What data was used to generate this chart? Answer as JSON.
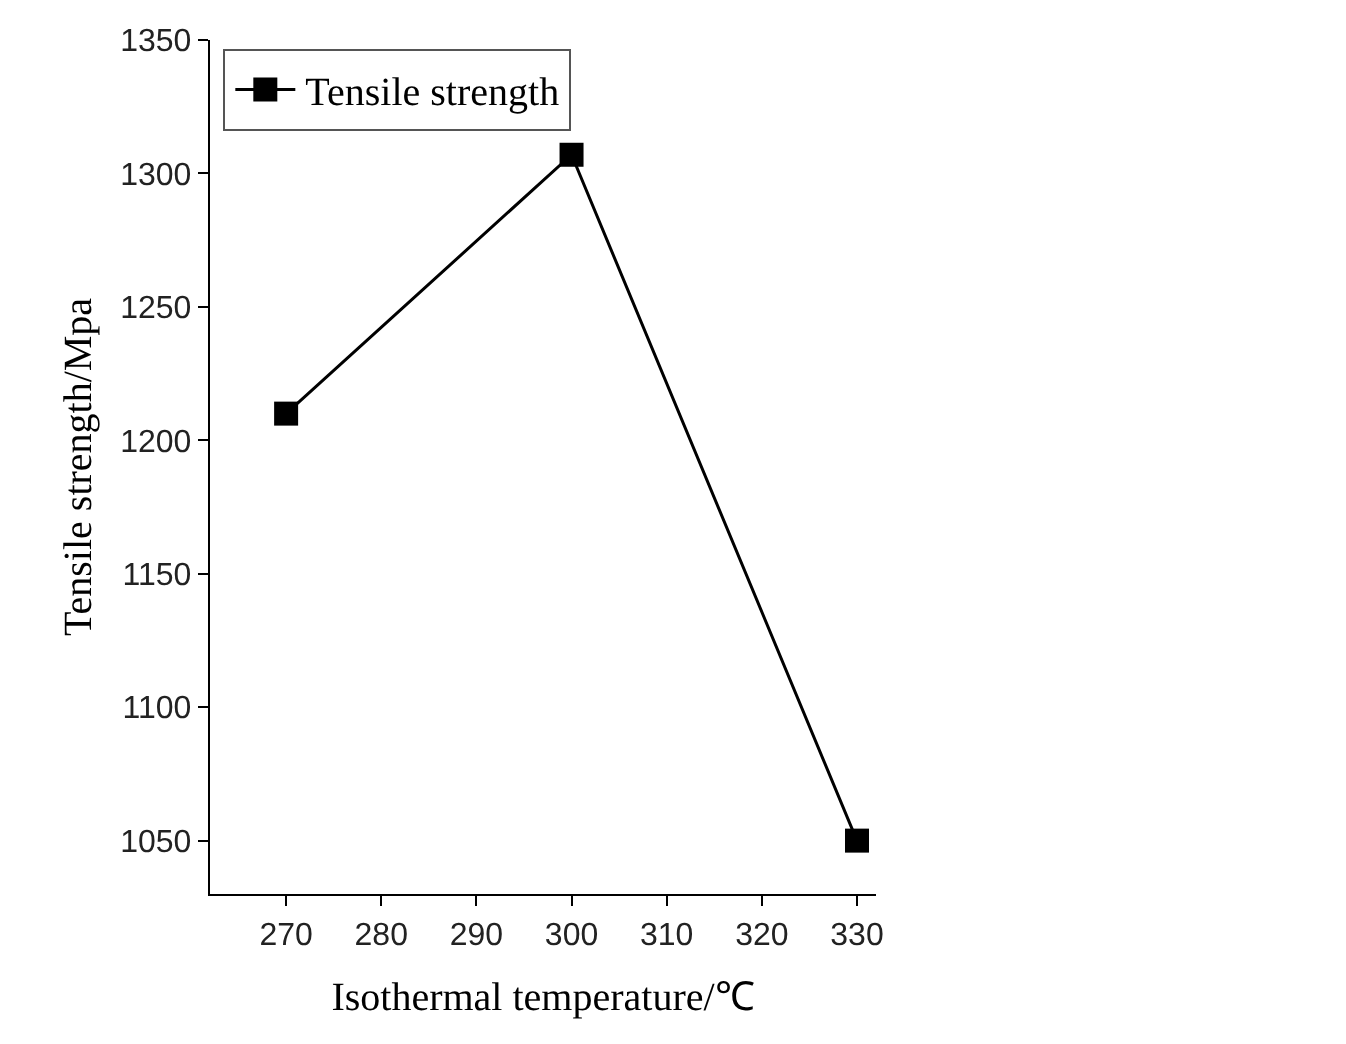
{
  "chart_data": {
    "type": "line",
    "xlabel": "Isothermal temperature/℃",
    "ylabel": "Tensile strength/Mpa",
    "x": [
      270,
      300,
      330
    ],
    "series": [
      {
        "name": "Tensile strength",
        "color": "#000000",
        "values": [
          1210,
          1307,
          1050
        ]
      }
    ],
    "xlim": [
      262,
      332
    ],
    "xticks": [
      270,
      280,
      290,
      300,
      310,
      320,
      330
    ],
    "ylim": [
      1030,
      1350
    ],
    "yticks": [
      1050,
      1100,
      1150,
      1200,
      1250,
      1300,
      1350
    ],
    "marker": "square",
    "line_style": "solid",
    "legend": "top left"
  }
}
